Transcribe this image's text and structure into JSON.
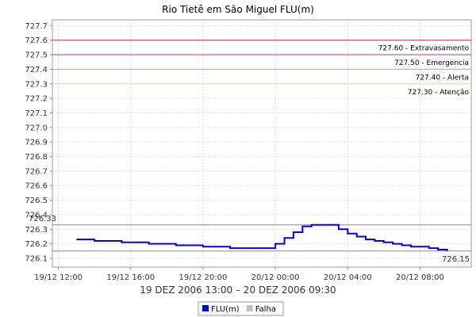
{
  "chart_data": {
    "type": "line",
    "title": "Rio Tietê em São Miguel FLU(m)",
    "subtitle": "19 DEZ 2006 13:00 – 20 DEZ 2006 09:30",
    "xlabel": "",
    "ylabel": "",
    "ylim": [
      726.04,
      727.74
    ],
    "y_ticks": [
      726.1,
      726.2,
      726.3,
      726.4,
      726.5,
      726.6,
      726.7,
      726.8,
      726.9,
      727.0,
      727.1,
      727.2,
      727.3,
      727.4,
      727.5,
      727.6,
      727.7
    ],
    "y_tick_labels": [
      "726.1",
      "726.2",
      "726.3",
      "726.4",
      "726.5",
      "726.6",
      "726.7",
      "726.8",
      "726.9",
      "727.0",
      "727.1",
      "727.2",
      "727.3",
      "727.4",
      "727.5",
      "727.6",
      "727.7"
    ],
    "xlim": [
      "19/12 11:40",
      "20/12 10:50"
    ],
    "x_ticks": [
      "19/12 12:00",
      "19/12 16:00",
      "19/12 20:00",
      "20/12 00:00",
      "20/12 04:00",
      "20/12 08:00"
    ],
    "x_tick_labels": [
      "19/12 12:00",
      "19/12 16:00",
      "19/12 20:00",
      "20/12 00:00",
      "20/12 04:00",
      "20/12 08:00"
    ],
    "grid": true,
    "legend_position": "bottom",
    "reference_lines": [
      {
        "label": "727.60 - Extravasamento",
        "value": 727.6,
        "color": "#c83232"
      },
      {
        "label": "727.50 - Emergencia",
        "value": 727.5,
        "color": "#b432b4"
      },
      {
        "label": "727.40 - Alerta",
        "value": 727.4,
        "color": "#d2b400"
      },
      {
        "label": "727.30 - Atenção",
        "value": 727.3,
        "color": "#f0e050"
      }
    ],
    "markers": [
      {
        "label": "726.33",
        "value": 726.33,
        "color": "#888888",
        "side": "left"
      },
      {
        "label": "726.15",
        "value": 726.15,
        "color": "#888888",
        "side": "right"
      }
    ],
    "series": [
      {
        "name": "FLU(m)",
        "color": "#0000ee",
        "x": [
          "19/12 13:00",
          "19/12 13:30",
          "19/12 14:00",
          "19/12 14:30",
          "19/12 15:00",
          "19/12 15:30",
          "19/12 16:00",
          "19/12 16:30",
          "19/12 17:00",
          "19/12 17:30",
          "19/12 18:00",
          "19/12 18:30",
          "19/12 19:00",
          "19/12 19:30",
          "19/12 20:00",
          "19/12 20:30",
          "19/12 21:00",
          "19/12 21:30",
          "19/12 22:00",
          "19/12 22:30",
          "19/12 23:00",
          "19/12 23:30",
          "20/12 00:00",
          "20/12 00:30",
          "20/12 01:00",
          "20/12 01:30",
          "20/12 02:00",
          "20/12 02:30",
          "20/12 03:00",
          "20/12 03:30",
          "20/12 04:00",
          "20/12 04:30",
          "20/12 05:00",
          "20/12 05:30",
          "20/12 06:00",
          "20/12 06:30",
          "20/12 07:00",
          "20/12 07:30",
          "20/12 08:00",
          "20/12 08:30",
          "20/12 09:00",
          "20/12 09:30"
        ],
        "values": [
          726.23,
          726.23,
          726.22,
          726.22,
          726.22,
          726.21,
          726.21,
          726.21,
          726.2,
          726.2,
          726.2,
          726.19,
          726.19,
          726.19,
          726.18,
          726.18,
          726.18,
          726.17,
          726.17,
          726.17,
          726.17,
          726.17,
          726.2,
          726.24,
          726.28,
          726.32,
          726.33,
          726.33,
          726.33,
          726.3,
          726.27,
          726.25,
          726.23,
          726.22,
          726.21,
          726.2,
          726.19,
          726.18,
          726.18,
          726.17,
          726.16,
          726.15
        ]
      },
      {
        "name": "Falha",
        "color": "#c0c0c0",
        "x": [],
        "values": []
      }
    ]
  }
}
